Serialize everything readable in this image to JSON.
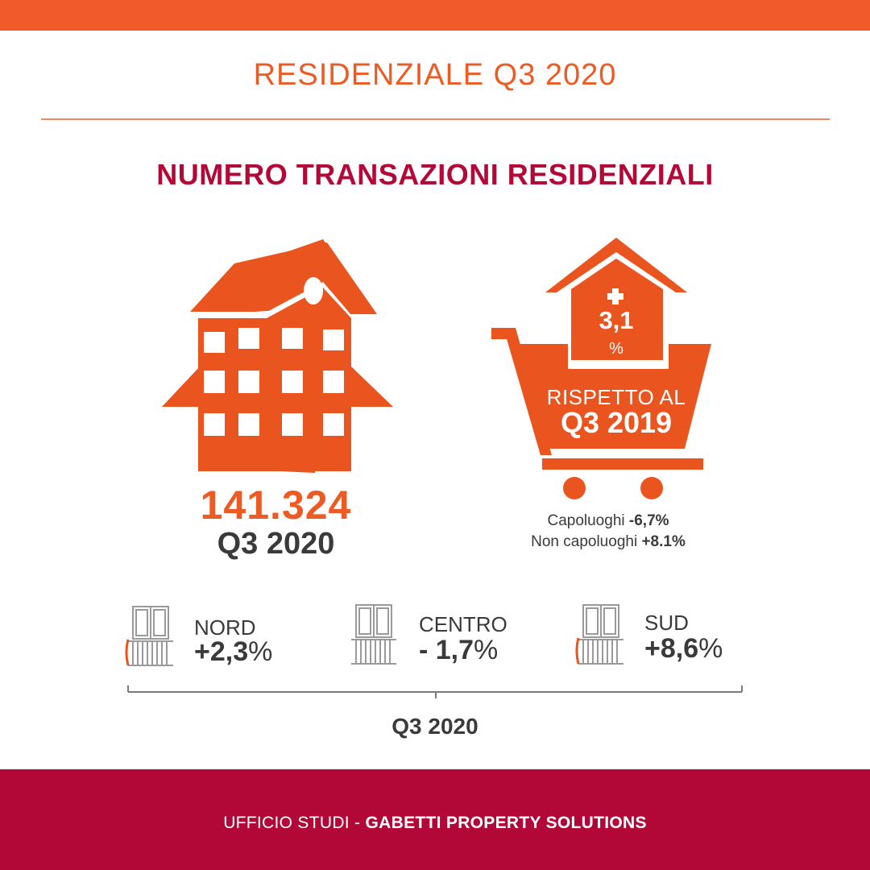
{
  "header": {
    "title": "RESIDENZIALE Q3 2020"
  },
  "section": {
    "title": "NUMERO TRANSAZIONI RESIDENZIALI"
  },
  "total": {
    "value": "141.324",
    "period": "Q3 2020"
  },
  "change": {
    "plus_sign": "+",
    "value": "3,1",
    "unit": "%",
    "compare_label": "RISPETTO AL",
    "compare_period": "Q3 2019",
    "icon": "shopping-cart-house-icon"
  },
  "split": [
    {
      "label": "Capoluoghi",
      "value": "-6,7%"
    },
    {
      "label": "Non capoluoghi",
      "value": "+8.1%"
    }
  ],
  "regions": [
    {
      "name": "NORD",
      "value": "+2,3",
      "unit": "%"
    },
    {
      "name": "CENTRO",
      "value": "- 1,7",
      "unit": "%"
    },
    {
      "name": "SUD",
      "value": "+8,6",
      "unit": "%"
    }
  ],
  "axis": {
    "label": "Q3 2020"
  },
  "footer": {
    "prefix": "UFFICIO STUDI - ",
    "brand": "GABETTI PROPERTY SOLUTIONS"
  },
  "colors": {
    "orange": "#ec5b24",
    "crimson": "#b10838",
    "dark": "#3a3a3a"
  },
  "icons": {
    "house": "house-icon",
    "balcony": "balcony-icon"
  }
}
